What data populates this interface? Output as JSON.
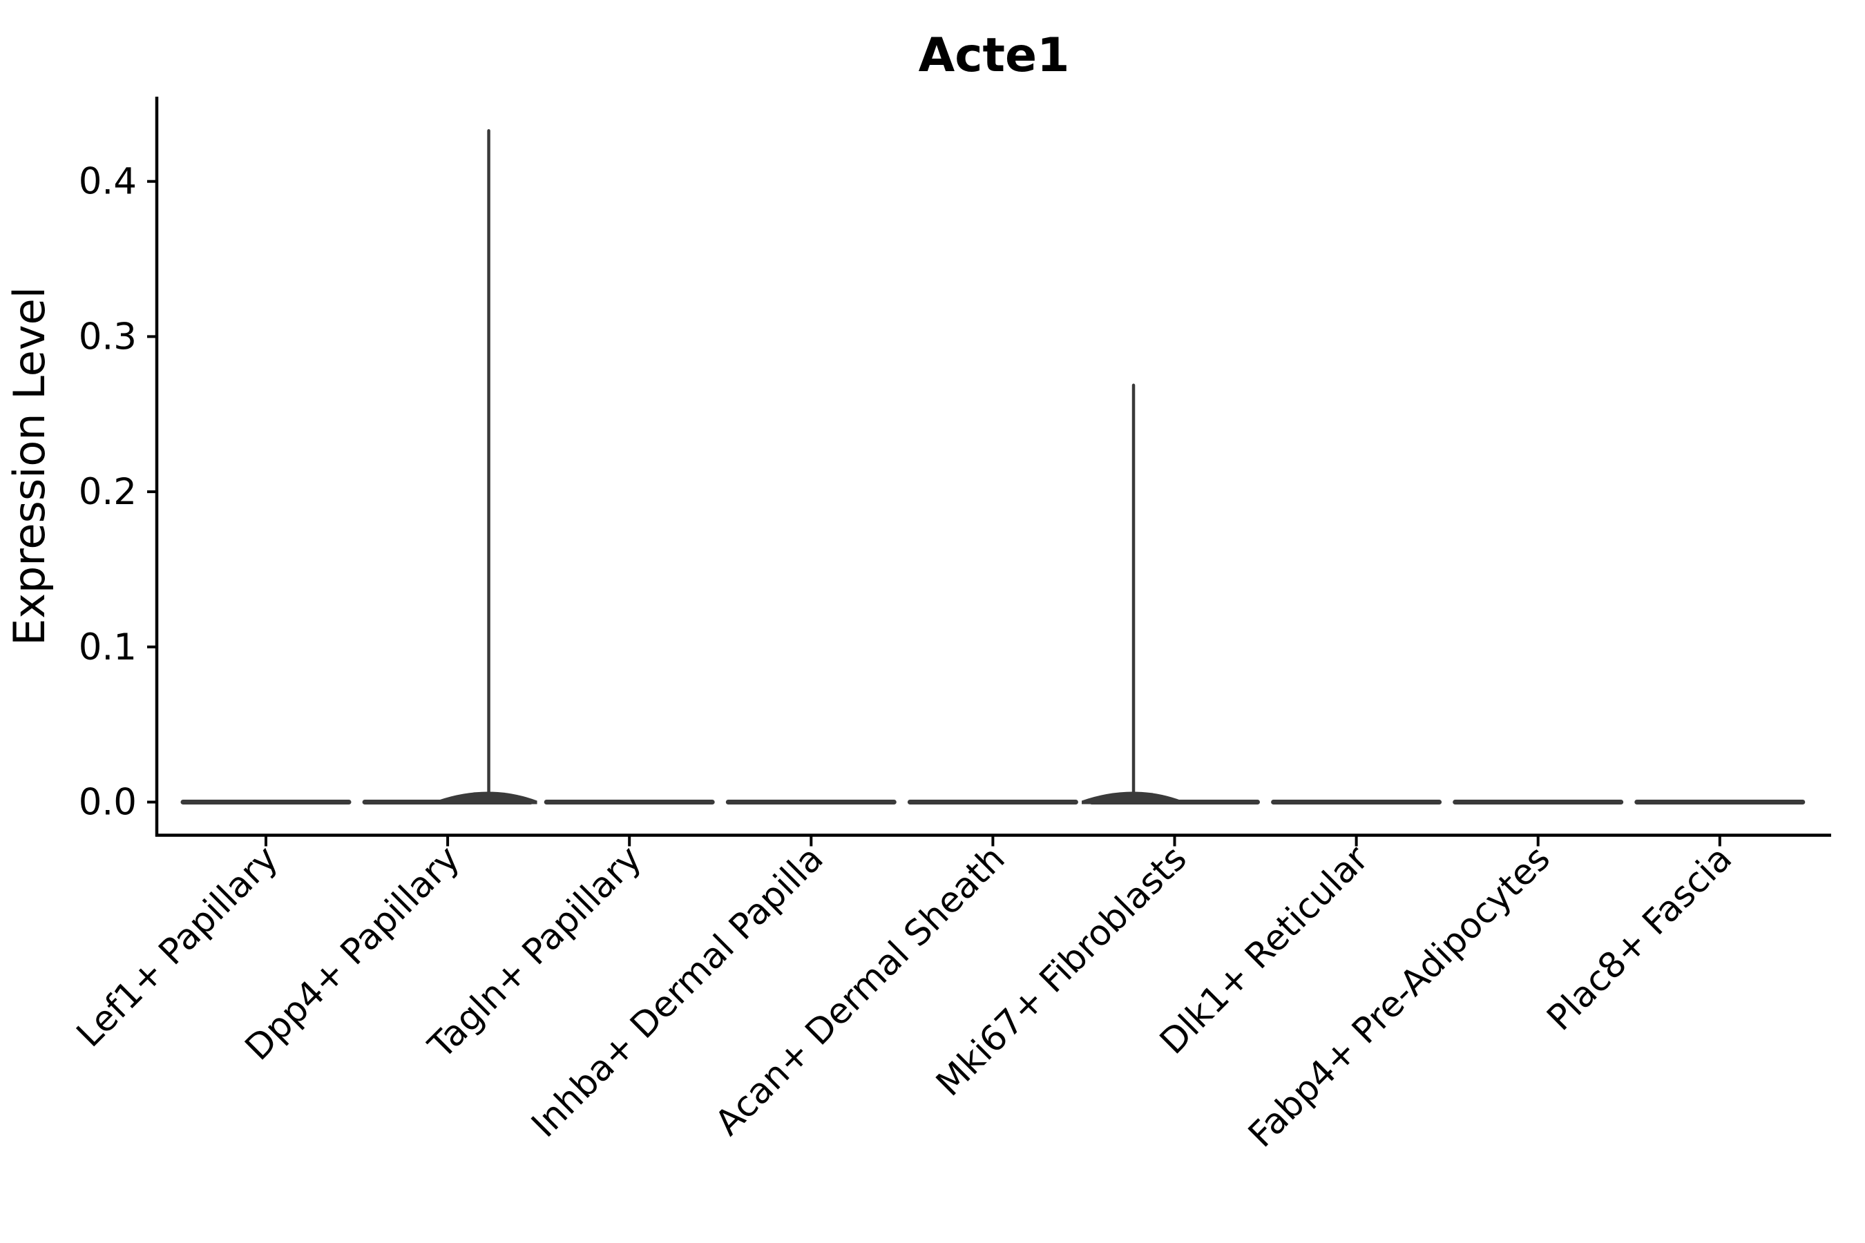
{
  "title": "Acte1",
  "axes": {
    "ylabel": "Expression Level",
    "ytick_labels": [
      "0.0",
      "0.1",
      "0.2",
      "0.3",
      "0.4"
    ]
  },
  "chart_data": {
    "type": "violin",
    "title": "Acte1",
    "xlabel": "",
    "ylabel": "Expression Level",
    "categories": [
      "Lef1+ Papillary",
      "Dpp4+ Papillary",
      "Tagln+ Papillary",
      "Inhba+ Dermal Papilla",
      "Acan+ Dermal Sheath",
      "Mki67+ Fibroblasts",
      "Dlk1+ Reticular",
      "Fabp4+ Pre-Adipocytes",
      "Plac8+ Fascia"
    ],
    "series": [
      {
        "name": "Expression Level",
        "baseline_value": 0.0,
        "max_values": [
          0.0,
          0.434,
          0.0,
          0.0,
          0.0,
          0.27,
          0.0,
          0.0,
          0.0
        ]
      }
    ],
    "outlier_spikes": [
      {
        "category": "Dpp4+ Papillary",
        "category_index": 1,
        "value": 0.434,
        "x_offset_fraction": 0.226
      },
      {
        "category": "Mki67+ Fibroblasts",
        "category_index": 5,
        "value": 0.27,
        "x_offset_fraction": -0.226
      }
    ],
    "yticks": [
      0.0,
      0.1,
      0.2,
      0.3,
      0.4
    ],
    "ylim": [
      -0.021,
      0.455
    ],
    "grid": false,
    "legend": null,
    "colors": {
      "violin_stroke": "#3a3a3a",
      "axis": "#000000",
      "text": "#000000",
      "background": "#ffffff"
    }
  }
}
